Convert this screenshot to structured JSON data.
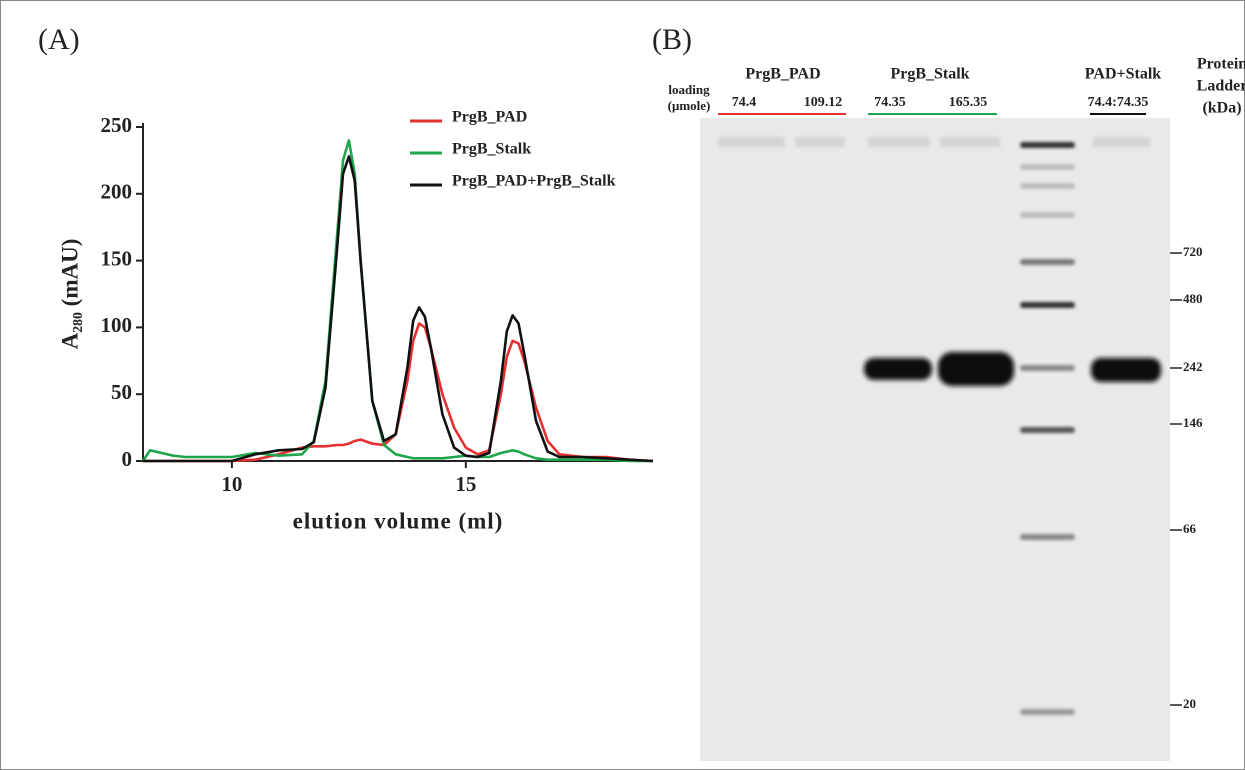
{
  "panels": [
    "(A)",
    "(B)"
  ],
  "chart_data": {
    "type": "line",
    "x_label": "elution volume (ml)",
    "y_label": "A₂₈₀ (mAU)",
    "x": [
      8.1,
      8.25,
      8.5,
      8.75,
      9,
      9.5,
      10,
      10.5,
      11,
      11.5,
      11.75,
      12,
      12.25,
      12.375,
      12.5,
      12.625,
      12.75,
      13,
      13.25,
      13.5,
      13.75,
      13.875,
      14,
      14.125,
      14.25,
      14.5,
      14.75,
      15,
      15.25,
      15.5,
      15.75,
      15.875,
      16,
      16.125,
      16.25,
      16.5,
      16.75,
      17,
      17.5,
      18,
      18.5,
      19
    ],
    "series": [
      {
        "name": "PrgB_PAD",
        "color": "#e53030",
        "values": [
          0,
          0,
          0,
          0,
          0,
          0,
          0,
          1,
          5,
          10,
          11,
          11,
          12,
          12,
          13,
          15,
          16,
          13,
          12,
          20,
          60,
          90,
          103,
          100,
          85,
          50,
          25,
          10,
          5,
          8,
          50,
          78,
          90,
          88,
          75,
          40,
          15,
          5,
          3,
          3,
          1,
          0
        ]
      },
      {
        "name": "PrgB_Stalk",
        "color": "#1fa64a",
        "values": [
          0,
          8,
          6,
          4,
          3,
          3,
          3,
          6,
          4,
          5,
          15,
          60,
          170,
          225,
          240,
          215,
          150,
          45,
          12,
          5,
          3,
          2,
          2,
          2,
          2,
          2,
          3,
          4,
          3,
          3,
          6,
          7,
          8,
          7,
          5,
          2,
          1,
          1,
          1,
          1,
          0,
          0
        ]
      },
      {
        "name": "PrgB_PAD+PrgB_Stalk",
        "color": "#111111",
        "values": [
          0,
          0,
          0,
          0,
          0,
          0,
          0,
          5,
          8,
          9,
          14,
          55,
          160,
          215,
          228,
          210,
          150,
          45,
          15,
          20,
          70,
          105,
          115,
          108,
          85,
          35,
          10,
          4,
          3,
          6,
          60,
          97,
          109,
          103,
          80,
          30,
          7,
          3,
          3,
          2,
          1,
          0
        ]
      }
    ],
    "xlim": [
      8.1,
      19
    ],
    "ylim": [
      0,
      250
    ],
    "xticks": [
      10,
      15
    ],
    "yticks": [
      0,
      50,
      100,
      150,
      200,
      250
    ]
  },
  "gel": {
    "loading_label": [
      "loading",
      "(μmole)"
    ],
    "groups": [
      {
        "name": "PrgB_PAD",
        "loads": [
          74.4,
          109.12
        ]
      },
      {
        "name": "PrgB_Stalk",
        "loads": [
          74.35,
          165.35
        ]
      },
      {
        "name": "PAD+Stalk",
        "loads": [
          "74.4:74.35"
        ]
      }
    ],
    "ladder_title": [
      "Protein",
      "Ladder",
      "(kDa)"
    ],
    "markers": [
      720,
      480,
      242,
      146,
      66,
      20
    ]
  }
}
